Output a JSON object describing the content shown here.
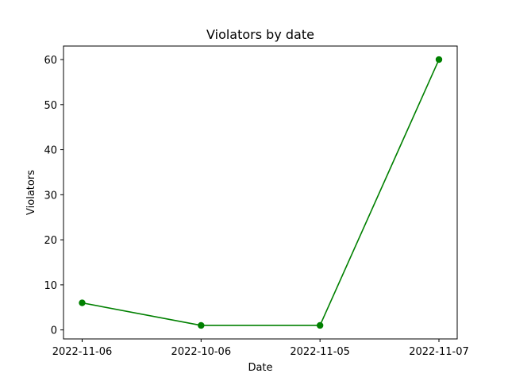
{
  "chart_data": {
    "type": "line",
    "title": "Violators by date",
    "xlabel": "Date",
    "ylabel": "Violators",
    "categories": [
      "2022-11-06",
      "2022-10-06",
      "2022-11-05",
      "2022-11-07"
    ],
    "series": [
      {
        "values": [
          6,
          1,
          1,
          60
        ],
        "color": "#008000",
        "marker": "circle"
      }
    ],
    "ylim": [
      -2,
      63
    ],
    "yticks": [
      0,
      10,
      20,
      30,
      40,
      50,
      60
    ],
    "grid": false,
    "legend": "none"
  }
}
